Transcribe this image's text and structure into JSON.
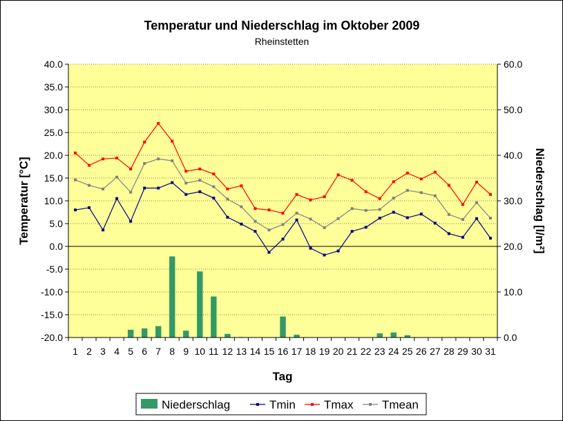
{
  "chart_data": {
    "type": "bar+line",
    "title": "Temperatur und Niederschlag im Oktober 2009",
    "subtitle": "Rheinstetten",
    "xlabel": "Tag",
    "ylabel_left": "Temperatur [°C]",
    "ylabel_right": "Niederschlag [l/m²]",
    "ylim_left": [
      -20,
      40
    ],
    "ylim_right": [
      0,
      60
    ],
    "yticks_left": [
      "-20.0",
      "-15.0",
      "-10.0",
      "-5.0",
      "0.0",
      "5.0",
      "10.0",
      "15.0",
      "20.0",
      "25.0",
      "30.0",
      "35.0",
      "40.0"
    ],
    "yticks_right": [
      "0.0",
      "10.0",
      "20.0",
      "30.0",
      "40.0",
      "50.0",
      "60.0"
    ],
    "categories": [
      "1",
      "2",
      "3",
      "4",
      "5",
      "6",
      "7",
      "8",
      "9",
      "10",
      "11",
      "12",
      "13",
      "14",
      "15",
      "16",
      "17",
      "18",
      "19",
      "20",
      "21",
      "22",
      "23",
      "24",
      "25",
      "26",
      "27",
      "28",
      "29",
      "30",
      "31"
    ],
    "grid": "horizontal",
    "legend_position": "bottom",
    "bars": {
      "name": "Niederschlag",
      "axis": "right",
      "color": "#339966",
      "values": [
        0,
        0,
        0,
        0,
        1.7,
        2.0,
        2.5,
        17.8,
        1.5,
        14.5,
        9.0,
        0.8,
        0.1,
        0,
        0,
        4.6,
        0.6,
        0,
        0,
        0,
        0,
        0,
        0.9,
        1.1,
        0.5,
        0,
        0,
        0,
        0,
        0,
        0
      ]
    },
    "series": [
      {
        "name": "Tmin",
        "axis": "left",
        "color": "#000080",
        "values": [
          8.0,
          8.5,
          3.6,
          10.5,
          5.5,
          12.8,
          12.8,
          14.0,
          11.4,
          12.0,
          10.6,
          6.4,
          4.9,
          3.3,
          -1.3,
          1.6,
          5.8,
          -0.4,
          -1.9,
          -1.0,
          3.3,
          4.2,
          6.2,
          7.5,
          6.3,
          7.1,
          5.1,
          2.8,
          2.0,
          6.1,
          1.8
        ]
      },
      {
        "name": "Tmax",
        "axis": "left",
        "color": "#ff0000",
        "values": [
          20.5,
          17.8,
          19.2,
          19.4,
          17.0,
          22.9,
          27.0,
          23.1,
          16.5,
          17.0,
          15.9,
          12.6,
          13.3,
          8.3,
          8.0,
          7.3,
          11.4,
          10.2,
          10.9,
          15.7,
          14.5,
          12.0,
          10.5,
          14.2,
          16.1,
          14.8,
          16.3,
          13.4,
          9.2,
          14.1,
          11.4
        ]
      },
      {
        "name": "Tmean",
        "axis": "left",
        "color": "#808080",
        "values": [
          14.6,
          13.4,
          12.6,
          15.2,
          11.9,
          18.2,
          19.2,
          18.8,
          13.9,
          14.5,
          13.1,
          10.4,
          8.7,
          5.5,
          3.6,
          4.8,
          7.3,
          6.0,
          4.1,
          6.1,
          8.3,
          7.9,
          8.1,
          10.6,
          12.3,
          11.8,
          11.1,
          7.0,
          5.9,
          9.6,
          6.2
        ]
      }
    ]
  }
}
